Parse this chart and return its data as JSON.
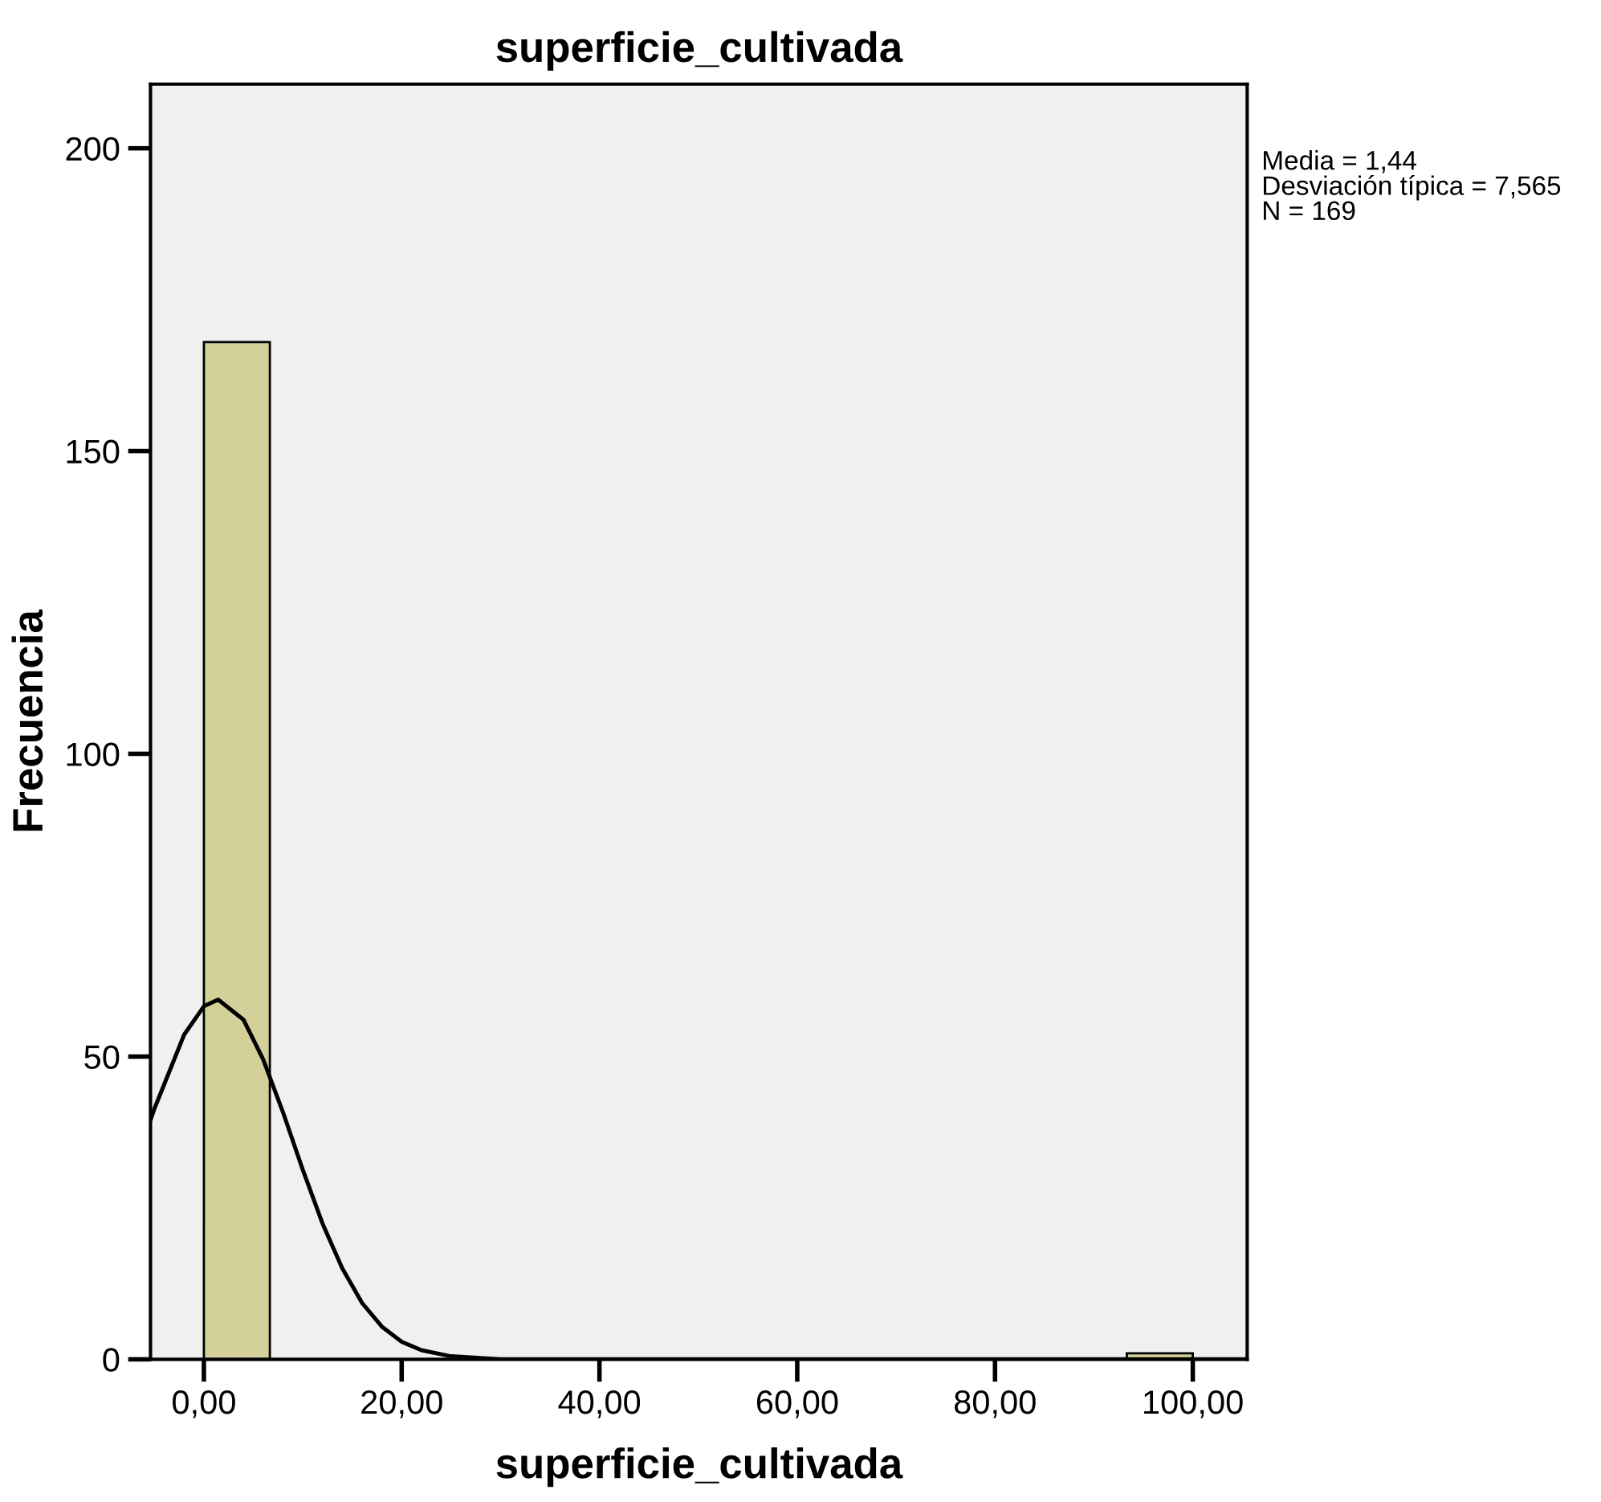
{
  "chart_data": {
    "type": "histogram",
    "title": "superficie_cultivada",
    "xlabel": "superficie_cultivada",
    "ylabel": "Frecuencia",
    "bins": [
      0,
      6.67,
      13.33,
      20,
      26.67,
      33.33,
      40,
      46.67,
      53.33,
      60,
      66.67,
      73.33,
      80,
      86.67,
      93.33,
      100
    ],
    "values": [
      168,
      0,
      0,
      0,
      0,
      0,
      0,
      0,
      0,
      0,
      0,
      0,
      0,
      0,
      1
    ],
    "color": "#d3d09a",
    "series": [
      {
        "type": "line",
        "color": "#000000",
        "x": [
          -5.4,
          -5,
          -2,
          0,
          1.44,
          4,
          6,
          8,
          10,
          12,
          14,
          16,
          18,
          20,
          22,
          25,
          30,
          40,
          60,
          80,
          100,
          105.5
        ],
        "values": [
          39.5,
          41.4,
          53.6,
          58.3,
          59.4,
          56.1,
          49.5,
          40.8,
          31.3,
          22.4,
          15.0,
          9.3,
          5.4,
          2.9,
          1.5,
          0.5,
          0,
          0,
          0,
          0,
          0,
          0
        ]
      }
    ],
    "xlim": [
      -5.4,
      105.5
    ],
    "ylim": [
      0,
      210.6
    ],
    "xticks": [
      {
        "value": 0,
        "label": "0,00"
      },
      {
        "value": 20,
        "label": "20,00"
      },
      {
        "value": 40,
        "label": "40,00"
      },
      {
        "value": 60,
        "label": "60,00"
      },
      {
        "value": 80,
        "label": "80,00"
      },
      {
        "value": 100,
        "label": "100,00"
      }
    ],
    "yticks": [
      0,
      50,
      100,
      150,
      200
    ],
    "grid": false,
    "legend": false,
    "annotations": [
      "Media = 1,44\nDesviación típica = 7,565\nN = 169"
    ]
  }
}
